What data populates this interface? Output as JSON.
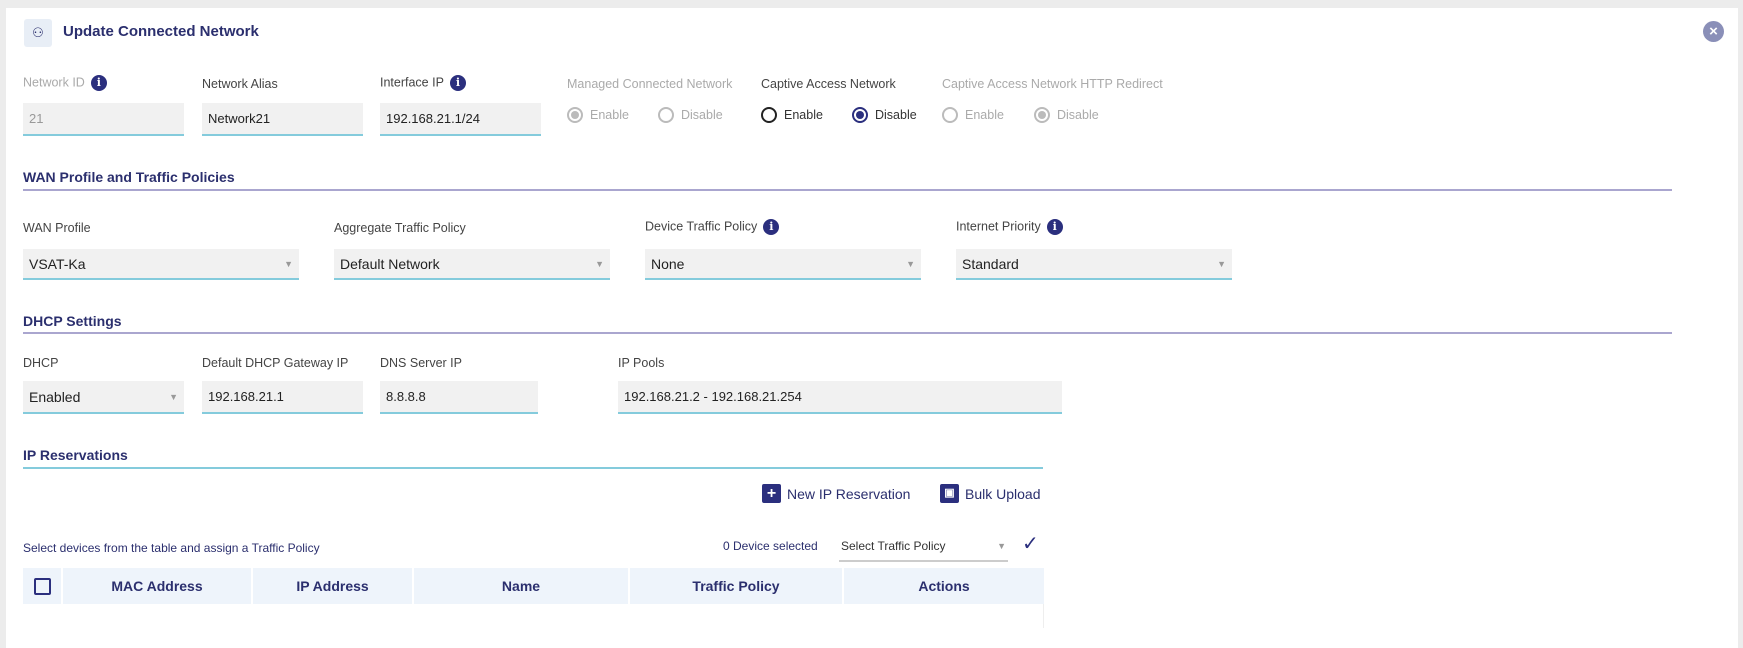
{
  "header": {
    "title": "Update Connected Network",
    "icon": "network-icon",
    "close_icon": "close-icon"
  },
  "row1": {
    "network_id": {
      "label": "Network ID",
      "value": "21"
    },
    "network_alias": {
      "label": "Network Alias",
      "value": "Network21"
    },
    "interface_ip": {
      "label": "Interface IP",
      "value": "192.168.21.1/24"
    },
    "managed": {
      "label": "Managed Connected Network",
      "enable": "Enable",
      "disable": "Disable",
      "selected": "Enable",
      "disabled": true
    },
    "captive": {
      "label": "Captive Access Network",
      "enable": "Enable",
      "disable": "Disable",
      "selected": "Disable"
    },
    "captive_redirect": {
      "label": "Captive Access Network HTTP Redirect",
      "enable": "Enable",
      "disable": "Disable",
      "selected": "Disable",
      "disabled": true
    }
  },
  "wan": {
    "title": "WAN Profile and Traffic Policies",
    "wan_profile": {
      "label": "WAN Profile",
      "value": "VSAT-Ka"
    },
    "aggregate": {
      "label": "Aggregate Traffic Policy",
      "value": "Default Network"
    },
    "device": {
      "label": "Device Traffic Policy",
      "value": "None"
    },
    "priority": {
      "label": "Internet Priority",
      "value": "Standard"
    }
  },
  "dhcp": {
    "title": "DHCP Settings",
    "dhcp": {
      "label": "DHCP",
      "value": "Enabled"
    },
    "gateway": {
      "label": "Default DHCP Gateway IP",
      "value": "192.168.21.1"
    },
    "dns": {
      "label": "DNS Server IP",
      "value": "8.8.8.8"
    },
    "pools": {
      "label": "IP Pools",
      "value": "192.168.21.2 - 192.168.21.254"
    }
  },
  "reservations": {
    "title": "IP Reservations",
    "new_label": "New IP Reservation",
    "bulk_label": "Bulk Upload",
    "hint": "Select devices from the table and assign a Traffic Policy",
    "selected_count": "0 Device selected",
    "policy_placeholder": "Select Traffic Policy",
    "columns": [
      "MAC Address",
      "IP Address",
      "Name",
      "Traffic Policy",
      "Actions"
    ]
  }
}
